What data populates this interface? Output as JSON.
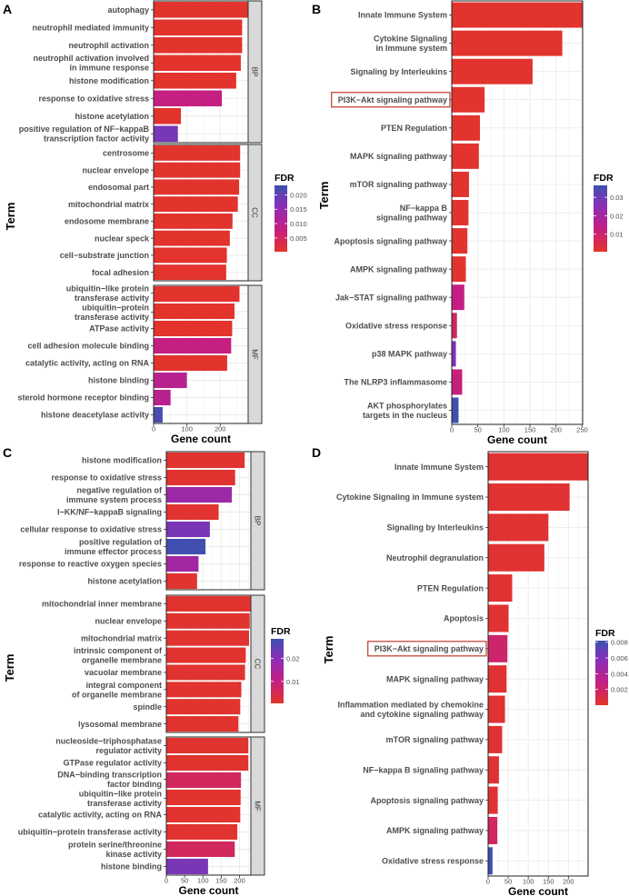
{
  "colors": {
    "low": "#e3342a",
    "mid1": "#c41e84",
    "mid2": "#8a2fb8",
    "high": "#3b51ae",
    "highlight_box": "#c0392b",
    "strip_fill": "#d9d9d9"
  },
  "chart_data": [
    {
      "panel": "A",
      "type": "bar",
      "orientation": "horizontal",
      "xlabel": "Gene count",
      "ylabel": "Term",
      "xlim": [
        0,
        284
      ],
      "xticks": [
        0,
        100,
        200
      ],
      "legend": {
        "title": "FDR",
        "range": [
          0.0002,
          0.0233
        ],
        "ticks": [
          0.005,
          0.01,
          0.015,
          0.02
        ],
        "tick_labels": [
          "0.005",
          "0.010",
          "0.015",
          "0.020"
        ],
        "placement": "right"
      },
      "facets": [
        {
          "name": "BP",
          "bars": [
            {
              "term": "autophagy",
              "count": 284,
              "fdr": 0.0005
            },
            {
              "term": "neutrophil mediated immunity",
              "count": 266,
              "fdr": 0.0005
            },
            {
              "term": "neutrophil activation",
              "count": 266,
              "fdr": 0.0005
            },
            {
              "term": "neutrophil activation involved\nin immune response",
              "count": 262,
              "fdr": 0.0005
            },
            {
              "term": "histone modification",
              "count": 248,
              "fdr": 0.0005
            },
            {
              "term": "response to oxidative stress",
              "count": 205,
              "fdr": 0.008
            },
            {
              "term": "histone acetylation",
              "count": 82,
              "fdr": 0.0005
            },
            {
              "term": "positive regulation of NF−kappaB\ntranscription factor activity",
              "count": 73,
              "fdr": 0.018
            }
          ]
        },
        {
          "name": "CC",
          "bars": [
            {
              "term": "centrosome",
              "count": 260,
              "fdr": 0.0005
            },
            {
              "term": "nuclear envelope",
              "count": 260,
              "fdr": 0.0005
            },
            {
              "term": "endosomal part",
              "count": 257,
              "fdr": 0.0005
            },
            {
              "term": "mitochondrial matrix",
              "count": 253,
              "fdr": 0.0005
            },
            {
              "term": "endosome membrane",
              "count": 237,
              "fdr": 0.0005
            },
            {
              "term": "nuclear speck",
              "count": 229,
              "fdr": 0.0005
            },
            {
              "term": "cell−substrate junction",
              "count": 220,
              "fdr": 0.0005
            },
            {
              "term": "focal adhesion",
              "count": 218,
              "fdr": 0.0005
            }
          ]
        },
        {
          "name": "MF",
          "bars": [
            {
              "term": "ubiquitin−like protein\ntransferase activity",
              "count": 258,
              "fdr": 0.0005
            },
            {
              "term": "ubiquitin−protein\ntransferase activity",
              "count": 243,
              "fdr": 0.0005
            },
            {
              "term": "ATPase activity",
              "count": 236,
              "fdr": 0.0005
            },
            {
              "term": "cell adhesion molecule binding",
              "count": 233,
              "fdr": 0.008
            },
            {
              "term": "catalytic activity, acting on RNA",
              "count": 221,
              "fdr": 0.0005
            },
            {
              "term": "histone binding",
              "count": 100,
              "fdr": 0.01
            },
            {
              "term": "steroid hormone receptor binding",
              "count": 51,
              "fdr": 0.01
            },
            {
              "term": "histone deacetylase activity",
              "count": 27,
              "fdr": 0.022
            }
          ]
        }
      ]
    },
    {
      "panel": "B",
      "type": "bar",
      "orientation": "horizontal",
      "xlabel": "Gene count",
      "ylabel": "Term",
      "xlim": [
        0,
        251
      ],
      "xticks": [
        0,
        50,
        100,
        150,
        200,
        250
      ],
      "legend": {
        "title": "FDR",
        "range": [
          0.0005,
          0.0365
        ],
        "ticks": [
          0.01,
          0.02,
          0.03
        ],
        "tick_labels": [
          "0.01",
          "0.02",
          "0.03"
        ],
        "placement": "right"
      },
      "facets": [
        {
          "name": "",
          "bars": [
            {
              "term": "Innate Immune System",
              "count": 251,
              "fdr": 0.001
            },
            {
              "term": "Cytokine Signaling\nin Immune system",
              "count": 212,
              "fdr": 0.001
            },
            {
              "term": "Signaling by Interleukins",
              "count": 155,
              "fdr": 0.001
            },
            {
              "term": "PI3K−Akt signaling pathway",
              "count": 63,
              "fdr": 0.001,
              "highlight": true
            },
            {
              "term": "PTEN Regulation",
              "count": 54,
              "fdr": 0.001
            },
            {
              "term": "MAPK signaling pathway",
              "count": 52,
              "fdr": 0.001
            },
            {
              "term": "mTOR signaling pathway",
              "count": 33,
              "fdr": 0.001
            },
            {
              "term": "NF−kappa B\nsignaling pathway",
              "count": 32,
              "fdr": 0.001
            },
            {
              "term": "Apoptosis signaling pathway",
              "count": 30,
              "fdr": 0.001
            },
            {
              "term": "AMPK signaling pathway",
              "count": 27,
              "fdr": 0.001
            },
            {
              "term": "Jak−STAT signaling pathway",
              "count": 24,
              "fdr": 0.013
            },
            {
              "term": "Oxidative stress response",
              "count": 10,
              "fdr": 0.008
            },
            {
              "term": "p38 MAPK pathway",
              "count": 8,
              "fdr": 0.027
            },
            {
              "term": "The NLRP3 inflammasome",
              "count": 20,
              "fdr": 0.012
            },
            {
              "term": "AKT phosphorylates\ntargets in the nucleus",
              "count": 13,
              "fdr": 0.036
            }
          ]
        }
      ]
    },
    {
      "panel": "C",
      "type": "bar",
      "orientation": "horizontal",
      "xlabel": "Gene count",
      "ylabel": "Term",
      "xlim": [
        0,
        231
      ],
      "xticks": [
        0,
        50,
        100,
        150,
        200
      ],
      "legend": {
        "title": "FDR",
        "range": [
          0.0004,
          0.0286
        ],
        "ticks": [
          0.01,
          0.02
        ],
        "tick_labels": [
          "0.01",
          "0.02"
        ],
        "placement": "right"
      },
      "facets": [
        {
          "name": "BP",
          "bars": [
            {
              "term": "histone modification",
              "count": 214,
              "fdr": 0.001
            },
            {
              "term": "response to oxidative stress",
              "count": 188,
              "fdr": 0.001
            },
            {
              "term": "negative regulation of\nimmune system process",
              "count": 179,
              "fdr": 0.017
            },
            {
              "term": "I−KK/NF−kappaB signaling",
              "count": 143,
              "fdr": 0.001
            },
            {
              "term": "cellular response to oxidative stress",
              "count": 119,
              "fdr": 0.022
            },
            {
              "term": "positive regulation of\nimmune effector process",
              "count": 107,
              "fdr": 0.028
            },
            {
              "term": "response to reactive oxygen species",
              "count": 88,
              "fdr": 0.016
            },
            {
              "term": "histone acetylation",
              "count": 84,
              "fdr": 0.001
            }
          ]
        },
        {
          "name": "CC",
          "bars": [
            {
              "term": "mitochondrial inner membrane",
              "count": 230,
              "fdr": 0.001
            },
            {
              "term": "nuclear envelope",
              "count": 228,
              "fdr": 0.001
            },
            {
              "term": "mitochondrial matrix",
              "count": 226,
              "fdr": 0.001
            },
            {
              "term": "intrinsic component of\norganelle membrane",
              "count": 217,
              "fdr": 0.001
            },
            {
              "term": "vacuolar membrane",
              "count": 215,
              "fdr": 0.001
            },
            {
              "term": "integral component\nof organelle membrane",
              "count": 205,
              "fdr": 0.001
            },
            {
              "term": "spindle",
              "count": 202,
              "fdr": 0.001
            },
            {
              "term": "lysosomal membrane",
              "count": 197,
              "fdr": 0.001
            }
          ]
        },
        {
          "name": "MF",
          "bars": [
            {
              "term": "nucleoside−triphosphatase\nregulator activity",
              "count": 224,
              "fdr": 0.001
            },
            {
              "term": "GTPase regulator activity",
              "count": 224,
              "fdr": 0.001
            },
            {
              "term": "DNA−binding transcription\nfactor binding",
              "count": 204,
              "fdr": 0.006
            },
            {
              "term": "ubiquitin−like protein\ntransferase activity",
              "count": 203,
              "fdr": 0.001
            },
            {
              "term": "catalytic activity, acting on RNA",
              "count": 202,
              "fdr": 0.001
            },
            {
              "term": "ubiquitin−protein transferase activity",
              "count": 194,
              "fdr": 0.001
            },
            {
              "term": "protein serine/threonine\nkinase activity",
              "count": 187,
              "fdr": 0.006
            },
            {
              "term": "histone binding",
              "count": 114,
              "fdr": 0.022
            }
          ]
        }
      ]
    },
    {
      "panel": "D",
      "type": "bar",
      "orientation": "horizontal",
      "xlabel": "Gene count",
      "ylabel": "Term",
      "xlim": [
        0,
        249
      ],
      "xticks": [
        0,
        50,
        100,
        150,
        200
      ],
      "legend": {
        "title": "FDR",
        "range": [
          0.0,
          0.0082
        ],
        "ticks": [
          0.002,
          0.004,
          0.006,
          0.008
        ],
        "tick_labels": [
          "0.002",
          "0.004",
          "0.006",
          "0.008"
        ],
        "placement": "right"
      },
      "facets": [
        {
          "name": "",
          "bars": [
            {
              "term": "Innate Immune System",
              "count": 249,
              "fdr": 0.0003
            },
            {
              "term": "Cytokine Signaling in Immune system",
              "count": 203,
              "fdr": 0.0003
            },
            {
              "term": "Signaling by Interleukins",
              "count": 150,
              "fdr": 0.0003
            },
            {
              "term": "Neutrophil degranulation",
              "count": 140,
              "fdr": 0.0003
            },
            {
              "term": "PTEN Regulation",
              "count": 60,
              "fdr": 0.0003
            },
            {
              "term": "Apoptosis",
              "count": 51,
              "fdr": 0.0003
            },
            {
              "term": "PI3K−Akt signaling pathway",
              "count": 48,
              "fdr": 0.002,
              "highlight": true
            },
            {
              "term": "MAPK signaling pathway",
              "count": 46,
              "fdr": 0.0003
            },
            {
              "term": "Inflammation mediated by chemokine\nand cytokine signaling pathway",
              "count": 42,
              "fdr": 0.0003
            },
            {
              "term": "mTOR signaling pathway",
              "count": 35,
              "fdr": 0.0003
            },
            {
              "term": "NF−kappa B signaling pathway",
              "count": 27,
              "fdr": 0.0003
            },
            {
              "term": "Apoptosis signaling pathway",
              "count": 24,
              "fdr": 0.0003
            },
            {
              "term": "AMPK signaling pathway",
              "count": 23,
              "fdr": 0.0018
            },
            {
              "term": "Oxidative stress response",
              "count": 11,
              "fdr": 0.008
            }
          ]
        }
      ]
    }
  ]
}
